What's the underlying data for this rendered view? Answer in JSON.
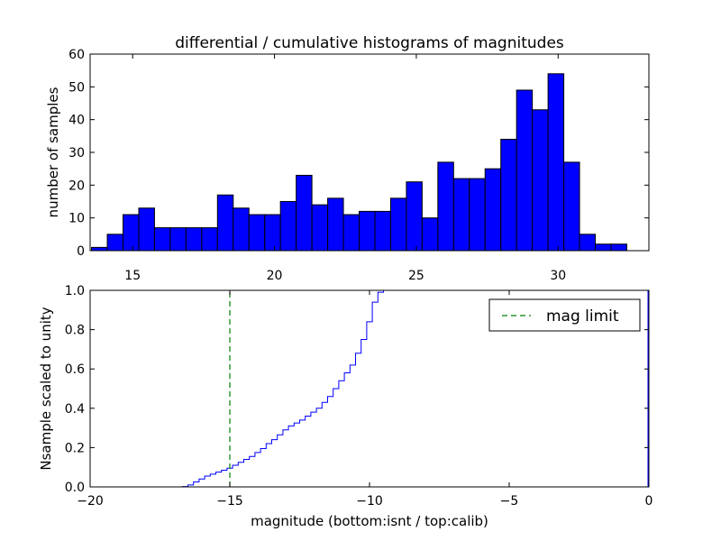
{
  "figure": {
    "title": "differential / cumulative histograms of magnitudes",
    "colors": {
      "hist_fill": "#0000ff",
      "cdf_line": "#0000ff",
      "limit_line": "#008000",
      "frame": "#000000"
    }
  },
  "chart_data": [
    {
      "type": "bar",
      "name": "differential-histogram",
      "title": "differential / cumulative histograms of magnitudes",
      "xlabel": "",
      "ylabel": "number of samples",
      "xlim": [
        13.5,
        33.2
      ],
      "ylim": [
        0,
        60
      ],
      "xticks": [
        15,
        20,
        25,
        30
      ],
      "xtick_labels": [
        "15",
        "20",
        "25",
        "30"
      ],
      "yticks": [
        0,
        10,
        20,
        30,
        40,
        50,
        60
      ],
      "ytick_labels": [
        "0",
        "10",
        "20",
        "30",
        "40",
        "50",
        "60"
      ],
      "bin_start": 13.55,
      "bin_width": 0.555,
      "values": [
        1,
        5,
        11,
        13,
        7,
        7,
        7,
        7,
        17,
        13,
        11,
        11,
        15,
        23,
        14,
        16,
        11,
        12,
        12,
        16,
        21,
        10,
        27,
        22,
        22,
        25,
        34,
        49,
        43,
        54,
        27,
        5,
        2,
        2
      ]
    },
    {
      "type": "line",
      "name": "cumulative-histogram",
      "xlabel": "magnitude (bottom:isnt / top:calib)",
      "ylabel": "Nsample scaled to unity",
      "xlim": [
        -20,
        0
      ],
      "ylim": [
        0.0,
        1.0
      ],
      "xticks": [
        -20,
        -15,
        -10,
        -5,
        0
      ],
      "xtick_labels": [
        "−20",
        "−15",
        "−10",
        "−5",
        "0"
      ],
      "yticks": [
        0.0,
        0.2,
        0.4,
        0.6,
        0.8,
        1.0
      ],
      "ytick_labels": [
        "0.0",
        "0.2",
        "0.4",
        "0.6",
        "0.8",
        "1.0"
      ],
      "series": [
        {
          "name": "cumulative",
          "style": "steps",
          "x": [
            -20,
            -16.7,
            -16.5,
            -16.3,
            -16.1,
            -15.9,
            -15.7,
            -15.5,
            -15.3,
            -15.1,
            -14.9,
            -14.7,
            -14.5,
            -14.3,
            -14.1,
            -13.9,
            -13.7,
            -13.5,
            -13.3,
            -13.1,
            -12.9,
            -12.7,
            -12.5,
            -12.3,
            -12.1,
            -11.9,
            -11.7,
            -11.5,
            -11.3,
            -11.1,
            -10.9,
            -10.7,
            -10.5,
            -10.3,
            -10.1,
            -9.9,
            -9.7,
            -9.5,
            -9.3,
            -9.1,
            -8.9,
            -8.7,
            -8.5
          ],
          "y": [
            0.0,
            0.002,
            0.01,
            0.025,
            0.04,
            0.055,
            0.065,
            0.075,
            0.085,
            0.095,
            0.11,
            0.125,
            0.14,
            0.155,
            0.175,
            0.195,
            0.22,
            0.24,
            0.265,
            0.29,
            0.31,
            0.325,
            0.34,
            0.36,
            0.38,
            0.4,
            0.43,
            0.46,
            0.5,
            0.54,
            0.58,
            0.62,
            0.68,
            0.75,
            0.84,
            0.94,
            0.99,
            1.0,
            1.0,
            1.0,
            1.0,
            1.0,
            1.0
          ]
        },
        {
          "name": "mag limit",
          "style": "dashed-vertical",
          "x": [
            -15,
            -15
          ],
          "y": [
            0.0,
            1.0
          ]
        }
      ],
      "legend": {
        "entries": [
          "mag limit"
        ],
        "placement": "top-right"
      }
    }
  ]
}
